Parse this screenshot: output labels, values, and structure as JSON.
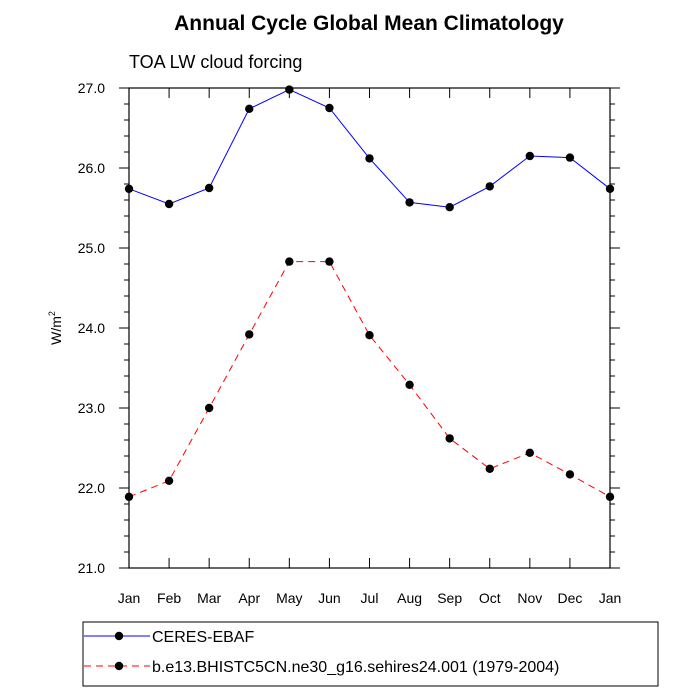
{
  "chart_data": {
    "type": "line",
    "title": "Annual Cycle Global Mean Climatology",
    "subtitle": "TOA LW cloud forcing",
    "ylabel_base": "W/m",
    "ylabel_sup": "2",
    "xlabel": "",
    "categories": [
      "Jan",
      "Feb",
      "Mar",
      "Apr",
      "May",
      "Jun",
      "Jul",
      "Aug",
      "Sep",
      "Oct",
      "Nov",
      "Dec",
      "Jan"
    ],
    "ylim": [
      21.0,
      27.0
    ],
    "yticks": [
      "21.0",
      "22.0",
      "23.0",
      "24.0",
      "25.0",
      "26.0",
      "27.0"
    ],
    "grid": false,
    "legend_position": "bottom",
    "series": [
      {
        "name": "CERES-EBAF",
        "color": "#0000ff",
        "dash": "solid",
        "values": [
          25.74,
          25.55,
          25.75,
          26.74,
          26.98,
          26.75,
          26.12,
          25.57,
          25.51,
          25.77,
          26.15,
          26.13,
          25.74
        ]
      },
      {
        "name": "b.e13.BHISTC5CN.ne30_g16.sehires24.001 (1979-2004)",
        "color": "#ff0000",
        "dash": "dashed",
        "values": [
          21.89,
          22.09,
          23.0,
          23.92,
          24.83,
          24.83,
          23.91,
          23.29,
          22.62,
          22.24,
          22.44,
          22.17,
          21.89
        ]
      }
    ]
  }
}
